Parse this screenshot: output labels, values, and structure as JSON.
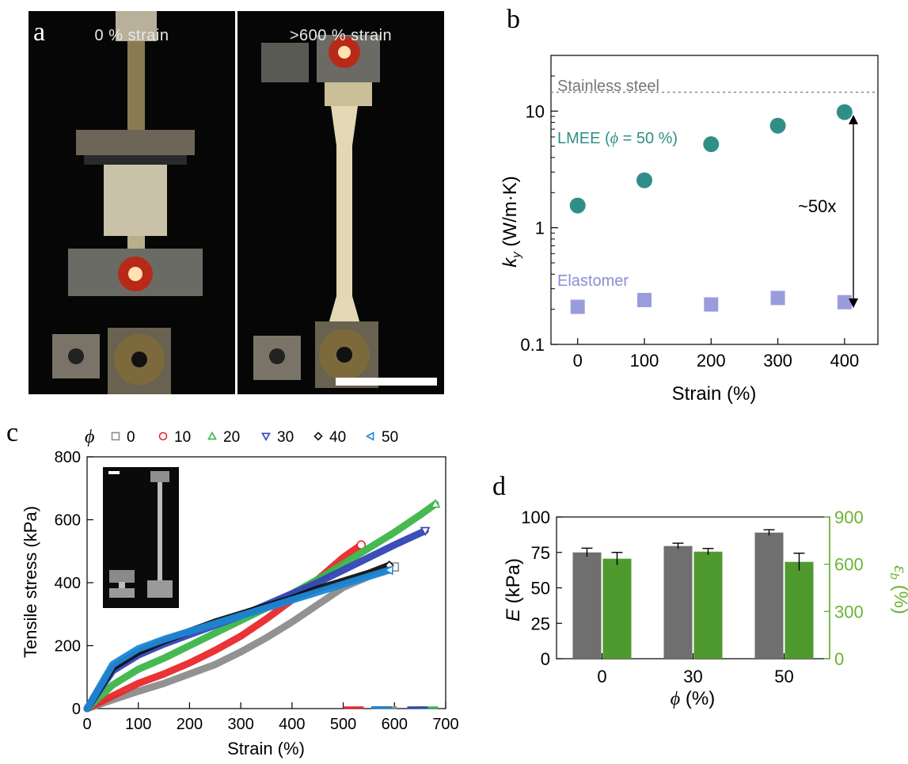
{
  "panel_a": {
    "letter": "a",
    "left_caption": "0 % strain",
    "right_caption": ">600 % strain"
  },
  "panel_b": {
    "letter": "b"
  },
  "panel_c": {
    "letter": "c",
    "phi_symbol": "ϕ"
  },
  "panel_d": {
    "letter": "d"
  },
  "colors": {
    "lmee": "#2f8f86",
    "elastomer": "#9a9ddb",
    "steel_line": "#888888",
    "s0": "#8c8c8c",
    "s10": "#e8282b",
    "s20": "#3cb54a",
    "s30": "#3344b5",
    "s40": "#111111",
    "s50": "#1e87d6",
    "bar_gray": "#6f6f6f",
    "bar_green": "#4f9a2f",
    "axis_green": "#6cb330"
  },
  "chart_data": [
    {
      "panel": "b",
      "type": "scatter",
      "xlabel": "Strain (%)",
      "ylabel": "k_y (W/m·K)",
      "yscale": "log",
      "xlim": [
        -40,
        450
      ],
      "ylim": [
        0.1,
        30
      ],
      "xticks": [
        "0",
        "100",
        "200",
        "300",
        "400"
      ],
      "yticks": [
        "0.1",
        "1",
        "10"
      ],
      "series": [
        {
          "name": "LMEE (ϕ = 50 %)",
          "marker": "circle",
          "x": [
            0,
            100,
            200,
            300,
            400
          ],
          "y": [
            1.55,
            2.55,
            5.2,
            7.5,
            9.8
          ]
        },
        {
          "name": "Elastomer",
          "marker": "square",
          "x": [
            0,
            100,
            200,
            300,
            400
          ],
          "y": [
            0.21,
            0.24,
            0.22,
            0.25,
            0.23
          ]
        }
      ],
      "reference_line": {
        "name": "Stainless steel",
        "y": 14.5
      },
      "annotation": "~50x"
    },
    {
      "panel": "c",
      "type": "line",
      "xlabel": "Strain (%)",
      "ylabel": "Tensile stress (kPa)",
      "xlim": [
        0,
        700
      ],
      "ylim": [
        0,
        800
      ],
      "xticks": [
        "0",
        "100",
        "200",
        "300",
        "400",
        "500",
        "600",
        "700"
      ],
      "yticks": [
        "0",
        "200",
        "400",
        "600",
        "800"
      ],
      "legend_title": "ϕ",
      "series": [
        {
          "name": "0",
          "marker": "square",
          "x": [
            0,
            50,
            100,
            150,
            200,
            250,
            300,
            350,
            400,
            450,
            500,
            550,
            600
          ],
          "y": [
            0,
            28,
            55,
            80,
            110,
            140,
            180,
            225,
            275,
            330,
            385,
            420,
            450
          ]
        },
        {
          "name": "10",
          "marker": "circle",
          "x": [
            0,
            50,
            100,
            150,
            200,
            250,
            300,
            350,
            400,
            450,
            500,
            535
          ],
          "y": [
            0,
            40,
            80,
            110,
            145,
            185,
            230,
            285,
            345,
            410,
            480,
            520
          ]
        },
        {
          "name": "20",
          "marker": "triangle-up",
          "x": [
            0,
            50,
            100,
            150,
            200,
            250,
            300,
            350,
            400,
            450,
            500,
            550,
            600,
            650,
            680
          ],
          "y": [
            0,
            75,
            125,
            160,
            200,
            240,
            280,
            320,
            365,
            410,
            460,
            510,
            560,
            615,
            650
          ]
        },
        {
          "name": "30",
          "marker": "triangle-down",
          "x": [
            0,
            50,
            100,
            150,
            200,
            250,
            300,
            350,
            400,
            450,
            500,
            550,
            600,
            660
          ],
          "y": [
            0,
            120,
            170,
            205,
            235,
            265,
            295,
            330,
            365,
            400,
            440,
            480,
            520,
            565
          ]
        },
        {
          "name": "40",
          "marker": "diamond",
          "x": [
            0,
            50,
            100,
            150,
            200,
            250,
            300,
            350,
            400,
            450,
            500,
            550,
            590
          ],
          "y": [
            0,
            130,
            180,
            215,
            245,
            275,
            300,
            325,
            350,
            380,
            405,
            430,
            455
          ]
        },
        {
          "name": "50",
          "marker": "triangle-left",
          "x": [
            0,
            50,
            100,
            150,
            200,
            250,
            300,
            350,
            400,
            450,
            500,
            550,
            590
          ],
          "y": [
            0,
            140,
            190,
            220,
            245,
            270,
            295,
            320,
            345,
            370,
            395,
            420,
            440
          ]
        }
      ]
    },
    {
      "panel": "d",
      "type": "bar",
      "xlabel": "ϕ (%)",
      "ylabel": "E (kPa)",
      "y2label": "ε_b (%)",
      "categories": [
        "0",
        "30",
        "50"
      ],
      "ylim": [
        0,
        100
      ],
      "y2lim": [
        0,
        900
      ],
      "yticks": [
        "0",
        "25",
        "50",
        "75",
        "100"
      ],
      "y2ticks": [
        "0",
        "300",
        "600",
        "900"
      ],
      "series": [
        {
          "axis": "left",
          "values": [
            75,
            79.5,
            89
          ],
          "errors": [
            3,
            2,
            2
          ]
        },
        {
          "axis": "right",
          "values": [
            635,
            680,
            615
          ],
          "errors": [
            40,
            20,
            55
          ]
        }
      ]
    }
  ]
}
